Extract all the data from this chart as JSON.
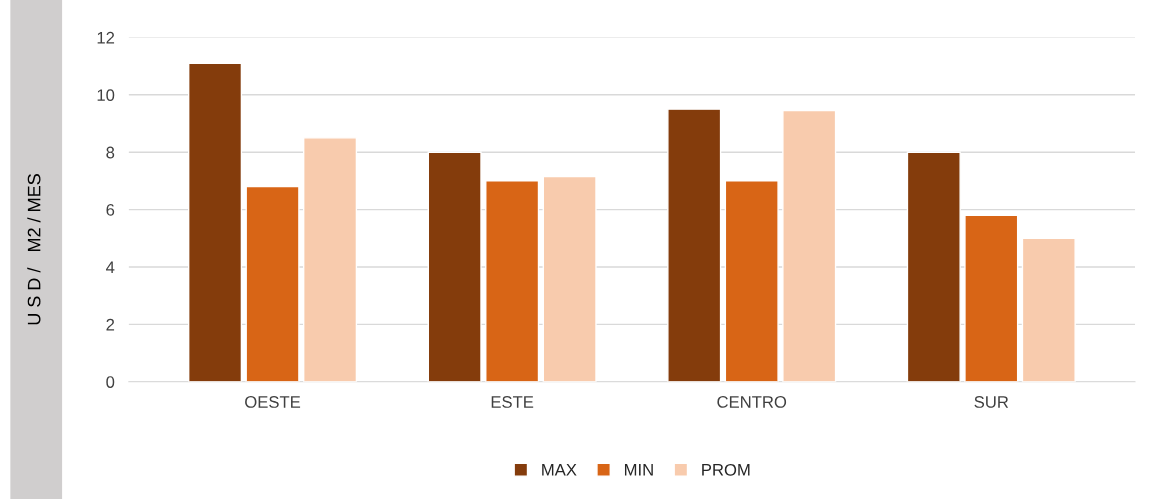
{
  "chart_data": {
    "type": "bar",
    "ylabel": "U S D /   M2 / MES",
    "categories": [
      "OESTE",
      "ESTE",
      "CENTRO",
      "SUR"
    ],
    "series": [
      {
        "name": "MAX",
        "color": "#843c0c",
        "values": [
          11.1,
          8,
          9.5,
          8
        ]
      },
      {
        "name": "MIN",
        "color": "#d86516",
        "values": [
          6.8,
          7,
          7,
          5.8
        ]
      },
      {
        "name": "PROM",
        "color": "#f8cbad",
        "values": [
          8.5,
          7.15,
          9.45,
          5
        ]
      }
    ],
    "ylim": [
      0,
      12
    ],
    "yticks": [
      0,
      2,
      4,
      6,
      8,
      10,
      12
    ],
    "grid": "y",
    "legend": "bottom"
  }
}
